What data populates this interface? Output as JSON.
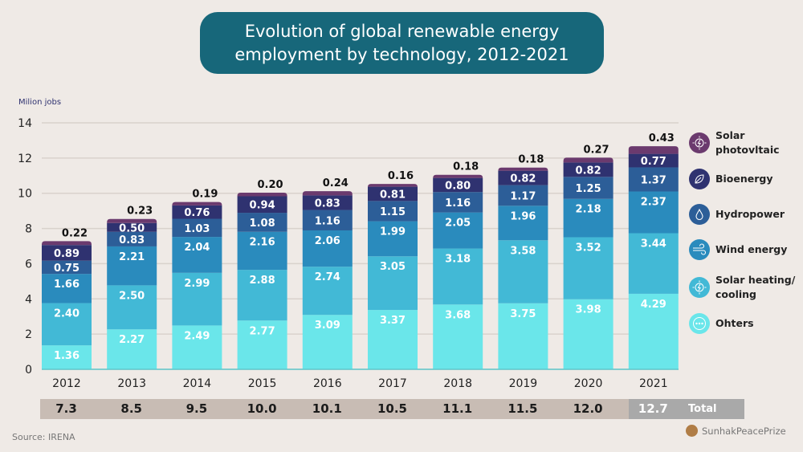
{
  "title": {
    "line1": "Evolution of global renewable energy",
    "line2": "employment by technology, 2012-2021"
  },
  "chart_data": {
    "type": "bar",
    "stacked": true,
    "title": "Evolution of global renewable energy employment by technology, 2012-2021",
    "xlabel": "",
    "ylabel": "Milion jobs",
    "ylim": [
      0,
      14
    ],
    "yticks": [
      0,
      2,
      4,
      6,
      8,
      10,
      12,
      14
    ],
    "grid": true,
    "legend_position": "right",
    "categories": [
      "2012",
      "2013",
      "2014",
      "2015",
      "2016",
      "2017",
      "2018",
      "2019",
      "2020",
      "2021"
    ],
    "series": [
      {
        "name": "Ohters",
        "color": "#6ae6ea",
        "values": [
          1.36,
          2.27,
          2.49,
          2.77,
          3.09,
          3.37,
          3.68,
          3.75,
          3.98,
          4.29
        ]
      },
      {
        "name": "Solar heating/ cooling",
        "color": "#42b9d6",
        "values": [
          2.4,
          2.5,
          2.99,
          2.88,
          2.74,
          3.05,
          3.18,
          3.58,
          3.52,
          3.44
        ]
      },
      {
        "name": "Wind energy",
        "color": "#2a8bbd",
        "values": [
          1.66,
          2.21,
          2.04,
          2.16,
          2.06,
          1.99,
          2.05,
          1.96,
          2.18,
          2.37
        ]
      },
      {
        "name": "Hydropower",
        "color": "#2c5e98",
        "values": [
          0.75,
          0.83,
          1.03,
          1.08,
          1.16,
          1.15,
          1.16,
          1.17,
          1.25,
          1.37
        ]
      },
      {
        "name": "Bioenergy",
        "color": "#2f3270",
        "values": [
          0.89,
          0.5,
          0.76,
          0.94,
          0.83,
          0.81,
          0.8,
          0.82,
          0.82,
          0.77
        ]
      },
      {
        "name": "Solar photovltaic",
        "color": "#6b3a6e",
        "values": [
          0.22,
          0.23,
          0.19,
          0.2,
          0.24,
          0.16,
          0.18,
          0.18,
          0.27,
          0.43
        ]
      }
    ],
    "totals": [
      "7.3",
      "8.5",
      "9.5",
      "10.0",
      "10.1",
      "10.5",
      "11.1",
      "11.5",
      "12.0",
      "12.7"
    ],
    "totals_label": "Total",
    "source": "Source: IRENA"
  },
  "legend": [
    {
      "label_line1": "Solar",
      "label_line2": "photovltaic",
      "icon": "sun-bolt-icon",
      "color": "#6b3a6e"
    },
    {
      "label_line1": "Bioenergy",
      "label_line2": "",
      "icon": "leaf-icon",
      "color": "#2f3270"
    },
    {
      "label_line1": "Hydropower",
      "label_line2": "",
      "icon": "water-drop-icon",
      "color": "#2c5e98"
    },
    {
      "label_line1": "Wind energy",
      "label_line2": "",
      "icon": "wind-icon",
      "color": "#2a8bbd"
    },
    {
      "label_line1": "Solar heating/",
      "label_line2": "cooling",
      "icon": "sun-bolt-icon",
      "color": "#42b9d6"
    },
    {
      "label_line1": "Ohters",
      "label_line2": "",
      "icon": "more-dots-icon",
      "color": "#6ae6ea"
    }
  ],
  "footer": {
    "source": "Source: IRENA",
    "brand": "SunhakPeacePrize"
  }
}
